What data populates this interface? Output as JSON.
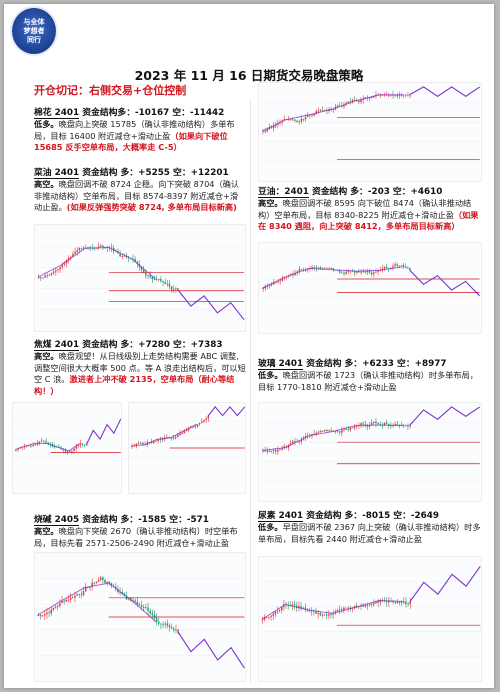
{
  "logo": {
    "line1": "与全体",
    "line2": "梦想者",
    "line3": "同行"
  },
  "title": "2023 年 11 月 16 日期货交易晚盘策略",
  "slogan": "开仓切记：右侧交易+仓位控制",
  "sections": [
    {
      "id": "cotton",
      "name": "棉花 2401",
      "structure_label": "资金结构多：",
      "long": "-10167",
      "short_label": "空：",
      "short": "-11442",
      "lead": "低多。",
      "text": "晚盘向上突破 15785（确认非推动结构）多单布局，目标 16400 附近减仓+滑动止盈",
      "note": "（如果向下破位 15685 反手空单布局，大概率走 C-5）"
    },
    {
      "id": "rapeseed-oil",
      "name": "菜油 2401",
      "structure_label": "资金结构 多：",
      "long": "+5255",
      "short_label": "空：",
      "short": "+12201",
      "lead": "高空。",
      "text": "晚盘回调不破 8724 企稳。向下突破 8704（确认非推动结构）空单布局，目标 8574-8397 附近减仓+滑动止盈。",
      "note": "(如果反弹强势突破 8724, 多单布局目标新高)"
    },
    {
      "id": "soybean-oil",
      "name": "豆油：2401",
      "structure_label": "资金结构 多：",
      "long": "-203",
      "short_label": "空：",
      "short": "+4610",
      "lead": "高空。",
      "text": "晚盘回调不破 8595 向下破位 8474（确认非推动结构）空单布局，目标 8340-8225 附近减仓+滑动止盈",
      "note": "（如果在 8340 遇阻，向上突破 8412，多单布局目标新高）"
    },
    {
      "id": "coking-coal",
      "name": "焦煤 2401",
      "structure_label": "资金结构 多：",
      "long": "+7280",
      "short_label": "空：",
      "short": "+7383",
      "lead": "高空。",
      "text": "晚盘观望！从日线级别上走势结构需要 ABC 调整,调整空间很大大概率 500 点。等 A 浪走出结构后，可以短空 C 浪。",
      "note": "激进者上冲不破 2135，空单布局（耐心等结构！）"
    },
    {
      "id": "glass",
      "name": "玻璃 2401",
      "structure_label": "资金结构 多：",
      "long": "+6233",
      "short_label": "空：",
      "short": "+8977",
      "lead": "低多。",
      "text": "晚盘回调不破 1723（确认非推动结构）时多单布局，目标 1770-1810 附近减仓+滑动止盈",
      "note": ""
    },
    {
      "id": "caustic-soda",
      "name": "烧碱 2405",
      "structure_label": "资金结构 多：",
      "long": "-1585",
      "short_label": "空：",
      "short": "-571",
      "lead": "高空。",
      "text": "晚盘向下突破 2670（确认非推动结构）时空单布局，目标先看 2571-2506-2490 附近减仓+滑动止盈",
      "note": ""
    },
    {
      "id": "urea",
      "name": "尿素 2401",
      "structure_label": "资金结构 多：",
      "long": "-8015",
      "short_label": "空：",
      "short": "-2649",
      "lead": "低多。",
      "text": "早盘回调不破 2367 向上突破（确认非推动结构）时多单布局，目标先看 2440 附近减仓+滑动止盈",
      "note": ""
    }
  ],
  "colors": {
    "up": "#e8383d",
    "down": "#1a9a6c",
    "wave": "#7b2fd0",
    "level": "#d4141f"
  }
}
